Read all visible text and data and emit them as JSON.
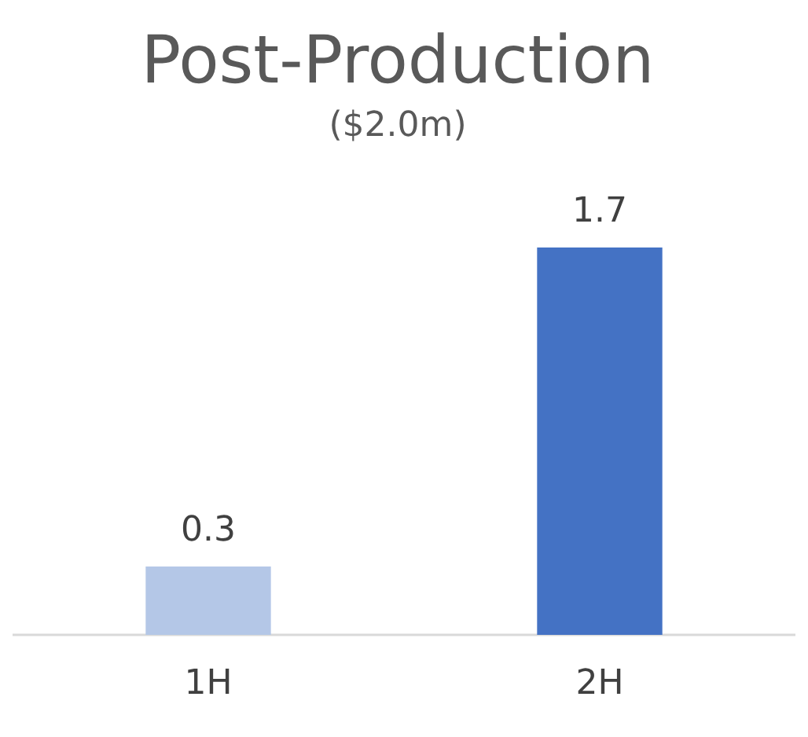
{
  "chart_data": {
    "type": "bar",
    "title": "Post-Production",
    "subtitle": "($2.0m)",
    "categories": [
      "1H",
      "2H"
    ],
    "values": [
      0.3,
      1.7
    ],
    "colors": [
      "#b4c7e7",
      "#4472c4"
    ],
    "data_labels": true
  }
}
